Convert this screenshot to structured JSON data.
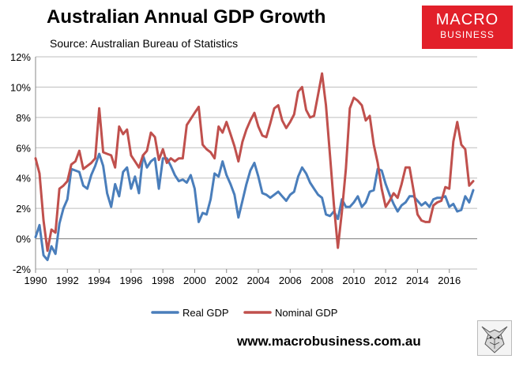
{
  "header": {
    "title": "Australian Annual GDP Growth",
    "subtitle": "Source: Australian Bureau of Statistics"
  },
  "logo": {
    "line1": "MACRO",
    "line2": "BUSINESS",
    "bg_color": "#e2202a",
    "icon": "wolf-sketch-icon"
  },
  "footer": {
    "url": "www.macrobusiness.com.au"
  },
  "chart_data": {
    "type": "line",
    "title": "Australian Annual GDP Growth",
    "xlabel": "",
    "ylabel": "",
    "ylim": [
      -2,
      12
    ],
    "xlim": [
      1990,
      2017.75
    ],
    "grid": true,
    "legend_position": "bottom",
    "y_ticks": [
      -2,
      0,
      2,
      4,
      6,
      8,
      10,
      12
    ],
    "y_tick_labels": [
      "-2%",
      "0%",
      "2%",
      "4%",
      "6%",
      "8%",
      "10%",
      "12%"
    ],
    "x_ticks": [
      1990,
      1992,
      1994,
      1996,
      1998,
      2000,
      2002,
      2004,
      2006,
      2008,
      2010,
      2012,
      2014,
      2016
    ],
    "x_tick_labels": [
      "1990",
      "1992",
      "1994",
      "1996",
      "1998",
      "2000",
      "2002",
      "2004",
      "2006",
      "2008",
      "2010",
      "2012",
      "2014",
      "2016"
    ],
    "series": [
      {
        "name": "Real GDP",
        "color": "#4a7ebb",
        "points": [
          [
            1990.0,
            0.1
          ],
          [
            1990.25,
            0.9
          ],
          [
            1990.5,
            -1.1
          ],
          [
            1990.75,
            -1.4
          ],
          [
            1991.0,
            -0.5
          ],
          [
            1991.25,
            -1.0
          ],
          [
            1991.5,
            1.0
          ],
          [
            1991.75,
            2.0
          ],
          [
            1992.0,
            2.6
          ],
          [
            1992.25,
            4.6
          ],
          [
            1992.5,
            4.5
          ],
          [
            1992.75,
            4.4
          ],
          [
            1993.0,
            3.5
          ],
          [
            1993.25,
            3.3
          ],
          [
            1993.5,
            4.2
          ],
          [
            1993.75,
            4.8
          ],
          [
            1994.0,
            5.6
          ],
          [
            1994.25,
            4.8
          ],
          [
            1994.5,
            3.0
          ],
          [
            1994.75,
            2.1
          ],
          [
            1995.0,
            3.6
          ],
          [
            1995.25,
            2.8
          ],
          [
            1995.5,
            4.4
          ],
          [
            1995.75,
            4.7
          ],
          [
            1996.0,
            3.3
          ],
          [
            1996.25,
            4.1
          ],
          [
            1996.5,
            3.0
          ],
          [
            1996.75,
            5.5
          ],
          [
            1997.0,
            4.7
          ],
          [
            1997.25,
            5.1
          ],
          [
            1997.5,
            5.3
          ],
          [
            1997.75,
            3.3
          ],
          [
            1998.0,
            5.3
          ],
          [
            1998.25,
            5.3
          ],
          [
            1998.5,
            4.8
          ],
          [
            1998.75,
            4.2
          ],
          [
            1999.0,
            3.8
          ],
          [
            1999.25,
            3.9
          ],
          [
            1999.5,
            3.7
          ],
          [
            1999.75,
            4.2
          ],
          [
            2000.0,
            3.3
          ],
          [
            2000.25,
            1.1
          ],
          [
            2000.5,
            1.7
          ],
          [
            2000.75,
            1.6
          ],
          [
            2001.0,
            2.6
          ],
          [
            2001.25,
            4.3
          ],
          [
            2001.5,
            4.1
          ],
          [
            2001.75,
            5.1
          ],
          [
            2002.0,
            4.2
          ],
          [
            2002.25,
            3.6
          ],
          [
            2002.5,
            2.9
          ],
          [
            2002.75,
            1.4
          ],
          [
            2003.0,
            2.5
          ],
          [
            2003.25,
            3.6
          ],
          [
            2003.5,
            4.5
          ],
          [
            2003.75,
            5.0
          ],
          [
            2004.0,
            4.1
          ],
          [
            2004.25,
            3.0
          ],
          [
            2004.5,
            2.9
          ],
          [
            2004.75,
            2.7
          ],
          [
            2005.0,
            2.9
          ],
          [
            2005.25,
            3.1
          ],
          [
            2005.5,
            2.8
          ],
          [
            2005.75,
            2.5
          ],
          [
            2006.0,
            2.9
          ],
          [
            2006.25,
            3.1
          ],
          [
            2006.5,
            4.1
          ],
          [
            2006.75,
            4.7
          ],
          [
            2007.0,
            4.3
          ],
          [
            2007.25,
            3.7
          ],
          [
            2007.5,
            3.3
          ],
          [
            2007.75,
            2.9
          ],
          [
            2008.0,
            2.7
          ],
          [
            2008.25,
            1.6
          ],
          [
            2008.5,
            1.5
          ],
          [
            2008.75,
            1.8
          ],
          [
            2009.0,
            1.3
          ],
          [
            2009.25,
            2.6
          ],
          [
            2009.5,
            2.1
          ],
          [
            2009.75,
            2.1
          ],
          [
            2010.0,
            2.4
          ],
          [
            2010.25,
            2.8
          ],
          [
            2010.5,
            2.1
          ],
          [
            2010.75,
            2.4
          ],
          [
            2011.0,
            3.1
          ],
          [
            2011.25,
            3.2
          ],
          [
            2011.5,
            4.6
          ],
          [
            2011.75,
            4.5
          ],
          [
            2012.0,
            3.6
          ],
          [
            2012.25,
            2.9
          ],
          [
            2012.5,
            2.3
          ],
          [
            2012.75,
            1.8
          ],
          [
            2013.0,
            2.2
          ],
          [
            2013.25,
            2.4
          ],
          [
            2013.5,
            2.8
          ],
          [
            2013.75,
            2.8
          ],
          [
            2014.0,
            2.5
          ],
          [
            2014.25,
            2.2
          ],
          [
            2014.5,
            2.4
          ],
          [
            2014.75,
            2.1
          ],
          [
            2015.0,
            2.6
          ],
          [
            2015.25,
            2.7
          ],
          [
            2015.5,
            2.7
          ],
          [
            2015.75,
            2.8
          ],
          [
            2016.0,
            2.1
          ],
          [
            2016.25,
            2.3
          ],
          [
            2016.5,
            1.8
          ],
          [
            2016.75,
            1.9
          ],
          [
            2017.0,
            2.8
          ],
          [
            2017.25,
            2.4
          ],
          [
            2017.5,
            3.2
          ]
        ]
      },
      {
        "name": "Nominal GDP",
        "color": "#c0504d",
        "points": [
          [
            1990.0,
            5.3
          ],
          [
            1990.25,
            4.3
          ],
          [
            1990.5,
            1.2
          ],
          [
            1990.75,
            -0.8
          ],
          [
            1991.0,
            0.6
          ],
          [
            1991.25,
            0.4
          ],
          [
            1991.5,
            3.3
          ],
          [
            1991.75,
            3.5
          ],
          [
            1992.0,
            3.8
          ],
          [
            1992.25,
            4.9
          ],
          [
            1992.5,
            5.1
          ],
          [
            1992.75,
            5.8
          ],
          [
            1993.0,
            4.6
          ],
          [
            1993.25,
            4.8
          ],
          [
            1993.5,
            5.0
          ],
          [
            1993.75,
            5.3
          ],
          [
            1994.0,
            8.6
          ],
          [
            1994.25,
            5.7
          ],
          [
            1994.5,
            5.6
          ],
          [
            1994.75,
            5.5
          ],
          [
            1995.0,
            4.7
          ],
          [
            1995.25,
            7.4
          ],
          [
            1995.5,
            6.9
          ],
          [
            1995.75,
            7.2
          ],
          [
            1996.0,
            5.5
          ],
          [
            1996.25,
            5.1
          ],
          [
            1996.5,
            4.7
          ],
          [
            1996.75,
            5.5
          ],
          [
            1997.0,
            5.8
          ],
          [
            1997.25,
            7.0
          ],
          [
            1997.5,
            6.7
          ],
          [
            1997.75,
            5.2
          ],
          [
            1998.0,
            5.9
          ],
          [
            1998.25,
            5.0
          ],
          [
            1998.5,
            5.3
          ],
          [
            1998.75,
            5.1
          ],
          [
            1999.0,
            5.3
          ],
          [
            1999.25,
            5.3
          ],
          [
            1999.5,
            7.5
          ],
          [
            1999.75,
            7.9
          ],
          [
            2000.0,
            8.3
          ],
          [
            2000.25,
            8.7
          ],
          [
            2000.5,
            6.2
          ],
          [
            2000.75,
            5.9
          ],
          [
            2001.0,
            5.7
          ],
          [
            2001.25,
            5.3
          ],
          [
            2001.5,
            7.4
          ],
          [
            2001.75,
            7.0
          ],
          [
            2002.0,
            7.7
          ],
          [
            2002.25,
            6.9
          ],
          [
            2002.5,
            6.1
          ],
          [
            2002.75,
            5.1
          ],
          [
            2003.0,
            6.4
          ],
          [
            2003.25,
            7.2
          ],
          [
            2003.5,
            7.8
          ],
          [
            2003.75,
            8.3
          ],
          [
            2004.0,
            7.4
          ],
          [
            2004.25,
            6.8
          ],
          [
            2004.5,
            6.7
          ],
          [
            2004.75,
            7.6
          ],
          [
            2005.0,
            8.6
          ],
          [
            2005.25,
            8.8
          ],
          [
            2005.5,
            7.8
          ],
          [
            2005.75,
            7.3
          ],
          [
            2006.0,
            7.7
          ],
          [
            2006.25,
            8.2
          ],
          [
            2006.5,
            9.7
          ],
          [
            2006.75,
            10.0
          ],
          [
            2007.0,
            8.5
          ],
          [
            2007.25,
            8.0
          ],
          [
            2007.5,
            8.1
          ],
          [
            2007.75,
            9.5
          ],
          [
            2008.0,
            10.9
          ],
          [
            2008.25,
            8.8
          ],
          [
            2008.5,
            5.5
          ],
          [
            2008.75,
            2.2
          ],
          [
            2009.0,
            -0.6
          ],
          [
            2009.25,
            1.8
          ],
          [
            2009.5,
            4.6
          ],
          [
            2009.75,
            8.6
          ],
          [
            2010.0,
            9.3
          ],
          [
            2010.25,
            9.1
          ],
          [
            2010.5,
            8.8
          ],
          [
            2010.75,
            7.8
          ],
          [
            2011.0,
            8.1
          ],
          [
            2011.25,
            6.2
          ],
          [
            2011.5,
            5.0
          ],
          [
            2011.75,
            3.3
          ],
          [
            2012.0,
            2.1
          ],
          [
            2012.25,
            2.5
          ],
          [
            2012.5,
            3.0
          ],
          [
            2012.75,
            2.7
          ],
          [
            2013.0,
            3.6
          ],
          [
            2013.25,
            4.7
          ],
          [
            2013.5,
            4.7
          ],
          [
            2013.75,
            3.2
          ],
          [
            2014.0,
            1.6
          ],
          [
            2014.25,
            1.2
          ],
          [
            2014.5,
            1.1
          ],
          [
            2014.75,
            1.1
          ],
          [
            2015.0,
            2.2
          ],
          [
            2015.25,
            2.4
          ],
          [
            2015.5,
            2.5
          ],
          [
            2015.75,
            3.4
          ],
          [
            2016.0,
            3.3
          ],
          [
            2016.25,
            6.4
          ],
          [
            2016.5,
            7.7
          ],
          [
            2016.75,
            6.2
          ],
          [
            2017.0,
            5.9
          ],
          [
            2017.25,
            3.5
          ],
          [
            2017.5,
            3.8
          ]
        ]
      }
    ]
  }
}
